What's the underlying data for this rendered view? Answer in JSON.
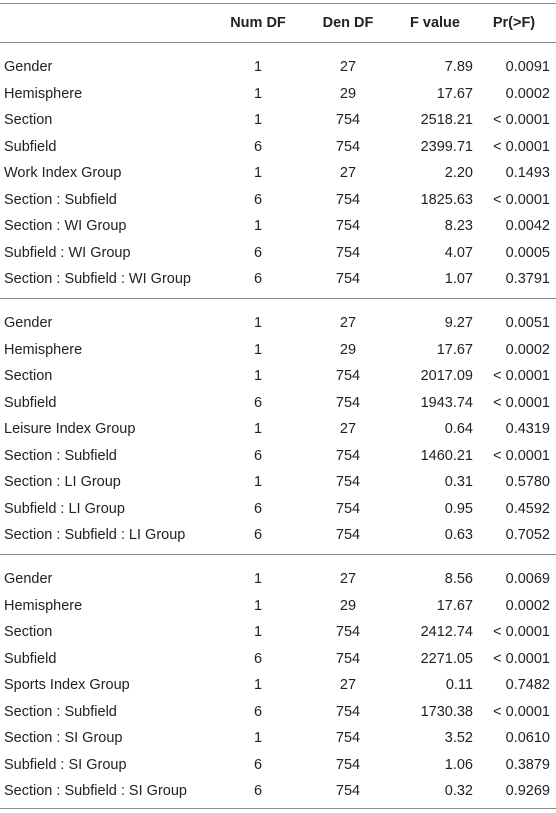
{
  "columns": [
    "",
    "Num DF",
    "Den DF",
    "F value",
    "Pr(>F)"
  ],
  "sections": [
    {
      "rows": [
        [
          "Gender",
          "1",
          "27",
          "7.89",
          "0.0091"
        ],
        [
          "Hemisphere",
          "1",
          "29",
          "17.67",
          "0.0002"
        ],
        [
          "Section",
          "1",
          "754",
          "2518.21",
          "< 0.0001"
        ],
        [
          "Subfield",
          "6",
          "754",
          "2399.71",
          "< 0.0001"
        ],
        [
          "Work Index Group",
          "1",
          "27",
          "2.20",
          "0.1493"
        ],
        [
          "Section : Subfield",
          "6",
          "754",
          "1825.63",
          "< 0.0001"
        ],
        [
          "Section : WI Group",
          "1",
          "754",
          "8.23",
          "0.0042"
        ],
        [
          "Subfield : WI Group",
          "6",
          "754",
          "4.07",
          "0.0005"
        ],
        [
          "Section : Subfield : WI Group",
          "6",
          "754",
          "1.07",
          "0.3791"
        ]
      ]
    },
    {
      "rows": [
        [
          "Gender",
          "1",
          "27",
          "9.27",
          "0.0051"
        ],
        [
          "Hemisphere",
          "1",
          "29",
          "17.67",
          "0.0002"
        ],
        [
          "Section",
          "1",
          "754",
          "2017.09",
          "< 0.0001"
        ],
        [
          "Subfield",
          "6",
          "754",
          "1943.74",
          "< 0.0001"
        ],
        [
          "Leisure Index Group",
          "1",
          "27",
          "0.64",
          "0.4319"
        ],
        [
          "Section : Subfield",
          "6",
          "754",
          "1460.21",
          "< 0.0001"
        ],
        [
          "Section : LI Group",
          "1",
          "754",
          "0.31",
          "0.5780"
        ],
        [
          "Subfield : LI Group",
          "6",
          "754",
          "0.95",
          "0.4592"
        ],
        [
          "Section : Subfield : LI Group",
          "6",
          "754",
          "0.63",
          "0.7052"
        ]
      ]
    },
    {
      "rows": [
        [
          "Gender",
          "1",
          "27",
          "8.56",
          "0.0069"
        ],
        [
          "Hemisphere",
          "1",
          "29",
          "17.67",
          "0.0002"
        ],
        [
          "Section",
          "1",
          "754",
          "2412.74",
          "< 0.0001"
        ],
        [
          "Subfield",
          "6",
          "754",
          "2271.05",
          "< 0.0001"
        ],
        [
          "Sports Index Group",
          "1",
          "27",
          "0.11",
          "0.7482"
        ],
        [
          "Section : Subfield",
          "6",
          "754",
          "1730.38",
          "< 0.0001"
        ],
        [
          "Section : SI Group",
          "1",
          "754",
          "3.52",
          "0.0610"
        ],
        [
          "Subfield : SI Group",
          "6",
          "754",
          "1.06",
          "0.3879"
        ],
        [
          "Section : Subfield : SI Group",
          "6",
          "754",
          "0.32",
          "0.9269"
        ]
      ]
    }
  ]
}
